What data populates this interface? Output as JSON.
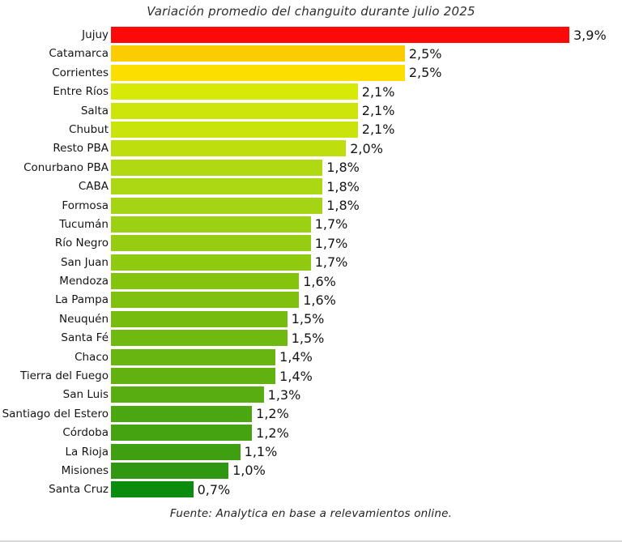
{
  "page": {
    "background": "#ffffff",
    "bottom_strip_color": "#d7d7d7"
  },
  "chart_data": {
    "type": "bar",
    "orientation": "horizontal",
    "title": "Variación promedio del changuito durante julio 2025",
    "source": "Fuente: Analytica en base a relevamientos online.",
    "unit": "%",
    "xlim": [
      0,
      3.9
    ],
    "value_format": "comma-decimal",
    "grid": false,
    "legend": false,
    "categories": [
      "Jujuy",
      "Catamarca",
      "Corrientes",
      "Entre Ríos",
      "Salta",
      "Chubut",
      "Resto PBA",
      "Conurbano PBA",
      "CABA",
      "Formosa",
      "Tucumán",
      "Río Negro",
      "San Juan",
      "Mendoza",
      "La Pampa",
      "Neuquén",
      "Santa Fé",
      "Chaco",
      "Tierra del Fuego",
      "San Luis",
      "Santiago del Estero",
      "Córdoba",
      "La Rioja",
      "Misiones",
      "Santa Cruz"
    ],
    "values": [
      3.9,
      2.5,
      2.5,
      2.1,
      2.1,
      2.1,
      2.0,
      1.8,
      1.8,
      1.8,
      1.7,
      1.7,
      1.7,
      1.6,
      1.6,
      1.5,
      1.5,
      1.4,
      1.4,
      1.3,
      1.2,
      1.2,
      1.1,
      1.0,
      0.7
    ],
    "rows": [
      {
        "label": "Jujuy",
        "value": 3.9,
        "display": "3,9%",
        "color": "#fb0a08"
      },
      {
        "label": "Catamarca",
        "value": 2.5,
        "display": "2,5%",
        "color": "#fccc02"
      },
      {
        "label": "Corrientes",
        "value": 2.5,
        "display": "2,5%",
        "color": "#fcdf00"
      },
      {
        "label": "Entre Ríos",
        "value": 2.1,
        "display": "2,1%",
        "color": "#d6e907"
      },
      {
        "label": "Salta",
        "value": 2.1,
        "display": "2,1%",
        "color": "#cde50a"
      },
      {
        "label": "Chubut",
        "value": 2.1,
        "display": "2,1%",
        "color": "#c9e30c"
      },
      {
        "label": "Resto PBA",
        "value": 2.0,
        "display": "2,0%",
        "color": "#bede0d"
      },
      {
        "label": "Conurbano PBA",
        "value": 1.8,
        "display": "1,8%",
        "color": "#b0d911"
      },
      {
        "label": "CABA",
        "value": 1.8,
        "display": "1,8%",
        "color": "#abd713"
      },
      {
        "label": "Formosa",
        "value": 1.8,
        "display": "1,8%",
        "color": "#a5d414"
      },
      {
        "label": "Tucumán",
        "value": 1.7,
        "display": "1,7%",
        "color": "#9cd013"
      },
      {
        "label": "Río Negro",
        "value": 1.7,
        "display": "1,7%",
        "color": "#96cd12"
      },
      {
        "label": "San Juan",
        "value": 1.7,
        "display": "1,7%",
        "color": "#8fca11"
      },
      {
        "label": "Mendoza",
        "value": 1.6,
        "display": "1,6%",
        "color": "#85c40c"
      },
      {
        "label": "La Pampa",
        "value": 1.6,
        "display": "1,6%",
        "color": "#7fc10e"
      },
      {
        "label": "Neuquén",
        "value": 1.5,
        "display": "1,5%",
        "color": "#76bc0e"
      },
      {
        "label": "Santa Fé",
        "value": 1.5,
        "display": "1,5%",
        "color": "#70b910"
      },
      {
        "label": "Chaco",
        "value": 1.4,
        "display": "1,4%",
        "color": "#68b511"
      },
      {
        "label": "Tierra del Fuego",
        "value": 1.4,
        "display": "1,4%",
        "color": "#61b211"
      },
      {
        "label": "San Luis",
        "value": 1.3,
        "display": "1,3%",
        "color": "#58ad11"
      },
      {
        "label": "Santiago del Estero",
        "value": 1.2,
        "display": "1,2%",
        "color": "#4aa611"
      },
      {
        "label": "Córdoba",
        "value": 1.2,
        "display": "1,2%",
        "color": "#45a311"
      },
      {
        "label": "La Rioja",
        "value": 1.1,
        "display": "1,1%",
        "color": "#3f9f11"
      },
      {
        "label": "Misiones",
        "value": 1.0,
        "display": "1,0%",
        "color": "#2f9712"
      },
      {
        "label": "Santa Cruz",
        "value": 0.7,
        "display": "0,7%",
        "color": "#0c8c0c"
      }
    ]
  }
}
